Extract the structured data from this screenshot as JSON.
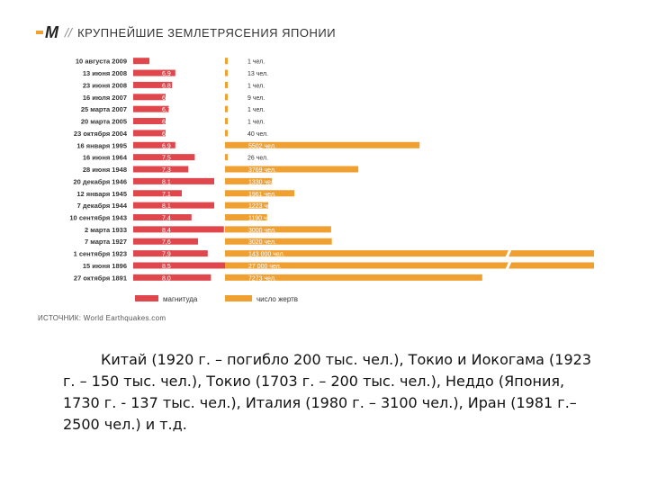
{
  "header": {
    "logo": "M",
    "slashes": "//",
    "title": "КРУПНЕЙШИЕ ЗЕМЛЕТРЯСЕНИЯ ЯПОНИИ"
  },
  "colors": {
    "magnitude": "#e0474c",
    "deaths": "#f0a030",
    "label_text": "#333333",
    "bar_text": "#ffffff"
  },
  "chart_data": {
    "type": "bar",
    "categories": [
      "10 августа 2009",
      "13 июня 2008",
      "23 июня 2008",
      "16 июля 2007",
      "25 марта 2007",
      "20 марта 2005",
      "23 октября 2004",
      "16 января 1995",
      "16 июня 1964",
      "28 июня 1948",
      "20 декабря 1946",
      "12 января 1945",
      "7 декабря 1944",
      "10 сентября 1943",
      "2 марта 1933",
      "7 марта 1927",
      "1 сентября 1923",
      "15 июня 1896",
      "27 октября 1891"
    ],
    "series": [
      {
        "name": "магнитуда",
        "values": [
          6.1,
          6.9,
          6.8,
          6.6,
          6.7,
          6.6,
          6.6,
          6.9,
          7.5,
          7.3,
          8.1,
          7.1,
          8.1,
          7.4,
          8.4,
          7.6,
          7.9,
          8.5,
          8.0
        ],
        "labels": [
          "6,1",
          "6,9",
          "6,8",
          "6,6",
          "6,7",
          "6,6",
          "6,6",
          "6,9",
          "7,5",
          "7,3",
          "8,1",
          "7,1",
          "8,1",
          "7,4",
          "8,4",
          "7,6",
          "7,9",
          "8,5",
          "8,0"
        ]
      },
      {
        "name": "число жертв",
        "values": [
          1,
          13,
          1,
          9,
          1,
          1,
          40,
          5502,
          26,
          3769,
          1330,
          1961,
          1223,
          1190,
          3000,
          3020,
          143000,
          27000,
          7273
        ],
        "labels": [
          "1 чел.",
          "13 чел.",
          "1 чел.",
          "9 чел.",
          "1 чел.",
          "1 чел.",
          "40 чел.",
          "5502 чел.",
          "26 чел.",
          "3769 чел.",
          "1330 чел.",
          "1961 чел.",
          "1223 чел.",
          "1190 чел.",
          "3000 чел.",
          "3020 чел.",
          "143 000 чел.",
          "27 000 чел.",
          "7273 чел."
        ]
      }
    ],
    "legend": [
      "магнитуда",
      "число жертв"
    ]
  },
  "source": "ИСТОЧНИК: World Earthquakes.com",
  "body_text": "Китай (1920 г. – погибло 200 тыс. чел.), Токио и Иокогама (1923 г. – 150 тыс. чел.), Токио (1703 г. – 200 тыс. чел.), Неддо (Япония, 1730 г. - 137 тыс. чел.), Италия (1980 г. – 3100 чел.), Иран (1981 г.– 2500 чел.) и т.д."
}
